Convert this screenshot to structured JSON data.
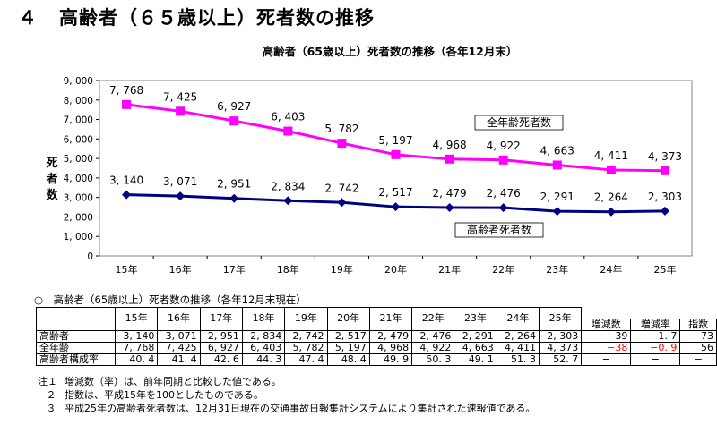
{
  "heading": {
    "number": "４",
    "text": "高齢者（６５歳以上）死者数の推移"
  },
  "chart_data": {
    "type": "line",
    "title": "高齢者（65歳以上）死者数の推移（各年12月末）",
    "ylabel": "死者数",
    "xlabel": "",
    "categories": [
      "15年",
      "16年",
      "17年",
      "18年",
      "19年",
      "20年",
      "21年",
      "22年",
      "23年",
      "24年",
      "25年"
    ],
    "ylim": [
      0,
      9000
    ],
    "yticks": [
      0,
      1000,
      2000,
      3000,
      4000,
      5000,
      6000,
      7000,
      8000,
      9000
    ],
    "ytick_labels": [
      "0",
      "1, 000",
      "2, 000",
      "3, 000",
      "4, 000",
      "5, 000",
      "6, 000",
      "7, 000",
      "8, 000",
      "9, 000"
    ],
    "grid": false,
    "series": [
      {
        "name": "全年齢死者数",
        "color": "#ff00ff",
        "values": [
          7768,
          7425,
          6927,
          6403,
          5782,
          5197,
          4968,
          4922,
          4663,
          4411,
          4373
        ],
        "labels": [
          "7, 768",
          "7, 425",
          "6, 927",
          "6, 403",
          "5, 782",
          "5, 197",
          "4, 968",
          "4, 922",
          "4, 663",
          "4, 411",
          "4, 373"
        ]
      },
      {
        "name": "高齢者死者数",
        "color": "#000080",
        "values": [
          3140,
          3071,
          2951,
          2834,
          2742,
          2517,
          2479,
          2476,
          2291,
          2264,
          2303
        ],
        "labels": [
          "3, 140",
          "3, 071",
          "2, 951",
          "2, 834",
          "2, 742",
          "2, 517",
          "2, 479",
          "2, 476",
          "2, 291",
          "2, 264",
          "2, 303"
        ]
      }
    ]
  },
  "table": {
    "caption": "○　高齢者（65歳以上）死者数の推移（各年12月末現在）",
    "years": [
      "15年",
      "16年",
      "17年",
      "18年",
      "19年",
      "20年",
      "21年",
      "22年",
      "23年",
      "24年",
      "25年"
    ],
    "extra_headers": [
      "増減数",
      "増減率",
      "指数"
    ],
    "rows": [
      {
        "label": "高齢者",
        "values": [
          "3, 140",
          "3, 071",
          "2, 951",
          "2, 834",
          "2, 742",
          "2, 517",
          "2, 479",
          "2, 476",
          "2, 291",
          "2, 264",
          "2, 303"
        ],
        "extra": [
          "39",
          "1. 7",
          "73"
        ]
      },
      {
        "label": "全年齢",
        "values": [
          "7, 768",
          "7, 425",
          "6, 927",
          "6, 403",
          "5, 782",
          "5, 197",
          "4, 968",
          "4, 922",
          "4, 663",
          "4, 411",
          "4, 373"
        ],
        "extra": [
          "−38",
          "−0. 9",
          "56"
        ]
      },
      {
        "label": "高齢者構成率",
        "values": [
          "40. 4",
          "41. 4",
          "42. 6",
          "44. 3",
          "47. 4",
          "48. 4",
          "49. 9",
          "50. 3",
          "49. 1",
          "51. 3",
          "52. 7"
        ],
        "extra": [
          "−",
          "−",
          "−"
        ]
      }
    ]
  },
  "notes": [
    {
      "num": "注１",
      "text": "増減数（率）は、前年同期と比較した値である。"
    },
    {
      "num": "２",
      "text": "指数は、平成15年を100としたものである。"
    },
    {
      "num": "３",
      "text": "平成25年の高齢者死者数は、12月31日現在の交通事故日報集計システムにより集計された速報値である。"
    }
  ]
}
